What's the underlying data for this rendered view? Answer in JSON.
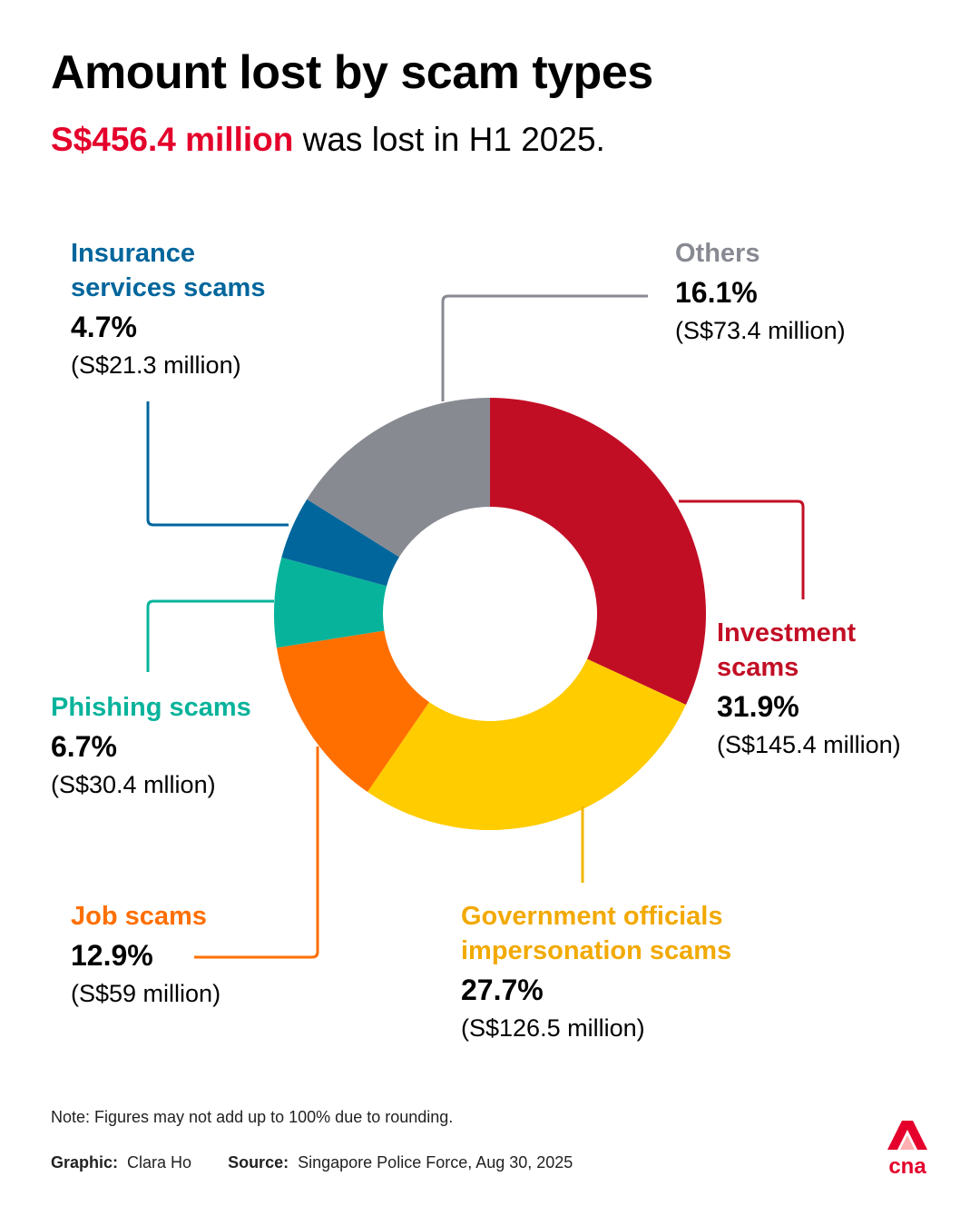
{
  "header": {
    "title": "Amount lost by scam types",
    "subtitle_highlight": "S$456.4 million",
    "subtitle_rest": " was lost in H1 2025."
  },
  "chart_data": {
    "type": "pie",
    "subtype": "donut",
    "title": "Amount lost by scam types",
    "unit": "S$ million",
    "series": [
      {
        "name": "Investment scams",
        "name_lines": [
          "Investment",
          "scams"
        ],
        "percent": 31.9,
        "percent_label": "31.9%",
        "value": 145.4,
        "value_label": "(S$145.4 million)",
        "color": "#c20e25"
      },
      {
        "name": "Government officials impersonation scams",
        "name_lines": [
          "Government officials",
          "impersonation scams"
        ],
        "percent": 27.7,
        "percent_label": "27.7%",
        "value": 126.5,
        "value_label": "(S$126.5 million)",
        "color": "#ffcc00"
      },
      {
        "name": "Job scams",
        "name_lines": [
          "Job scams"
        ],
        "percent": 12.9,
        "percent_label": "12.9%",
        "value": 59,
        "value_label": "(S$59 million)",
        "color": "#ff6f00"
      },
      {
        "name": "Phishing scams",
        "name_lines": [
          "Phishing scams"
        ],
        "percent": 6.7,
        "percent_label": "6.7%",
        "value": 30.4,
        "value_label": "(S$30.4 mllion)",
        "color": "#08b39b"
      },
      {
        "name": "Insurance services scams",
        "name_lines": [
          "Insurance",
          "services scams"
        ],
        "percent": 4.7,
        "percent_label": "4.7%",
        "value": 21.3,
        "value_label": "(S$21.3 million)",
        "color": "#00669c"
      },
      {
        "name": "Others",
        "name_lines": [
          "Others"
        ],
        "percent": 16.1,
        "percent_label": "16.1%",
        "value": 73.4,
        "value_label": "(S$73.4 million)",
        "color": "#888a92"
      }
    ],
    "label_colors": {
      "Investment scams": "#c20e25",
      "Government officials impersonation scams": "#f2a900",
      "Job scams": "#ff6f00",
      "Phishing scams": "#08b39b",
      "Insurance services scams": "#00669c",
      "Others": "#888a92"
    }
  },
  "footer": {
    "note": "Note: Figures may not add up to 100% due to rounding.",
    "graphic_label": "Graphic:",
    "graphic_value": "Clara Ho",
    "source_label": "Source:",
    "source_value": "Singapore Police Force, Aug 30, 2025",
    "logo_text": "cna",
    "logo_color": "#e4002b"
  }
}
